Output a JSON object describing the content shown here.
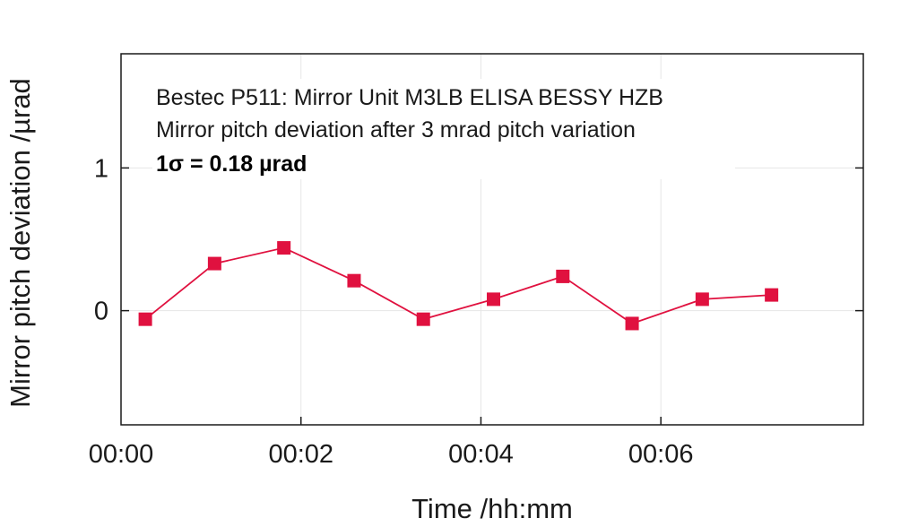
{
  "chart_data": {
    "type": "line",
    "xlabel": "Time /hh:mm",
    "ylabel": "Mirror pitch deviation /µrad",
    "annotations": [
      "Bestec P511: Mirror Unit M3LB ELISA BESSY HZB",
      "Mirror pitch deviation after 3 mrad pitch variation",
      "1σ = 0.18 µrad"
    ],
    "xlim": [
      0,
      8.25
    ],
    "ylim": [
      -0.8,
      1.8
    ],
    "x_ticks": [
      {
        "value": 0,
        "label": "00:00"
      },
      {
        "value": 2,
        "label": "00:02"
      },
      {
        "value": 4,
        "label": "00:04"
      },
      {
        "value": 6,
        "label": "00:06"
      }
    ],
    "y_ticks": [
      {
        "value": 0,
        "label": "0"
      },
      {
        "value": 1,
        "label": "1"
      }
    ],
    "grid": true,
    "series": [
      {
        "color": "#e0113f",
        "marker": "square",
        "points": [
          {
            "x": 0.27,
            "y": -0.06
          },
          {
            "x": 1.04,
            "y": 0.33
          },
          {
            "x": 1.81,
            "y": 0.44
          },
          {
            "x": 2.59,
            "y": 0.21
          },
          {
            "x": 3.36,
            "y": -0.06
          },
          {
            "x": 4.14,
            "y": 0.08
          },
          {
            "x": 4.91,
            "y": 0.24
          },
          {
            "x": 5.68,
            "y": -0.09
          },
          {
            "x": 6.46,
            "y": 0.08
          },
          {
            "x": 7.23,
            "y": 0.11
          }
        ]
      }
    ]
  }
}
